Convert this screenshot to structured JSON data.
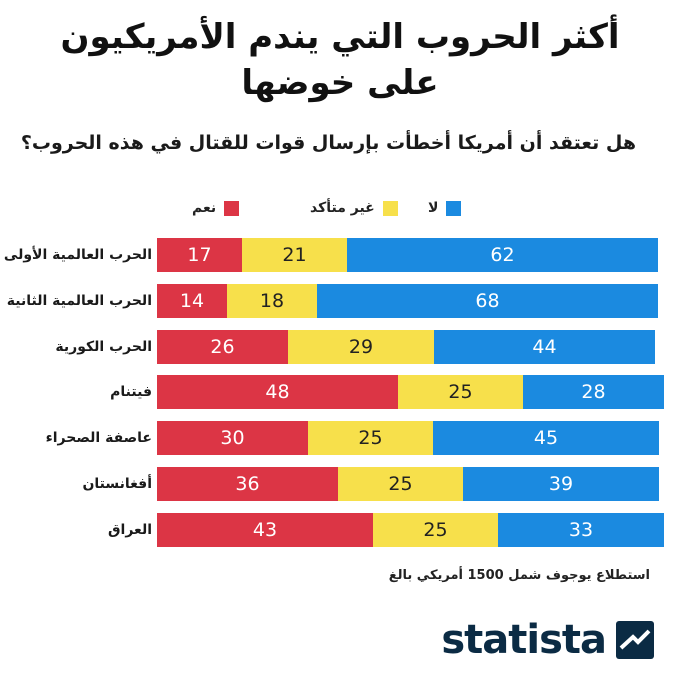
{
  "chart_data": {
    "type": "bar",
    "stacked": true,
    "orientation": "horizontal",
    "title": "أكثر الحروب التي يندم الأمريكيون على خوضها",
    "subtitle": "هل تعتقد أن أمريكا أخطأت بإرسال قوات للقتال في هذه الحروب؟",
    "categories": [
      "الحرب العالمية الأولى",
      "الحرب العالمية الثانية",
      "الحرب الكورية",
      "فيتنام",
      "عاصفة الصحراء",
      "أفغانستان",
      "العراق"
    ],
    "series": [
      {
        "name": "نعم",
        "key": "yes",
        "color": "#dc3545",
        "values": [
          17,
          14,
          26,
          48,
          30,
          36,
          43
        ]
      },
      {
        "name": "غير متأكد",
        "key": "unsure",
        "color": "#f7e04b",
        "values": [
          21,
          18,
          29,
          25,
          25,
          25,
          25
        ]
      },
      {
        "name": "لا",
        "key": "no",
        "color": "#1b8ae0",
        "values": [
          62,
          68,
          44,
          28,
          45,
          39,
          33
        ]
      }
    ],
    "legend_position": "top",
    "grid": false
  },
  "title_lines": [
    "أكثر الحروب التي يندم الأمريكيون",
    "على خوضها"
  ],
  "subtitle": "هل تعتقد أن أمريكا أخطأت بإرسال قوات للقتال في هذه الحروب؟",
  "source_note": "استطلاع يوجوف شمل 1500 أمريكي بالغ",
  "brand": {
    "name": "statista",
    "color": "#0b2b44"
  }
}
